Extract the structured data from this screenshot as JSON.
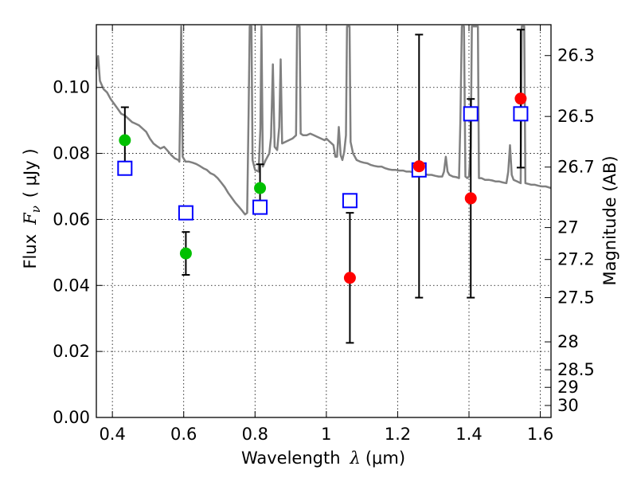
{
  "chart_data": {
    "type": "scatter",
    "xlabel_text": "Wavelength",
    "xlabel_symbol": "λ",
    "xlabel_unit": "(μm)",
    "ylabel_text": "Flux",
    "ylabel_symbol": "F",
    "ylabel_sub": "ν",
    "ylabel_unit": "( μJy )",
    "y2label": "Magnitude (AB)",
    "xlim": [
      0.355,
      1.63
    ],
    "ylim": [
      0.0,
      0.119
    ],
    "grid": true,
    "x_ticks": [
      0.4,
      0.6,
      0.8,
      1.0,
      1.2,
      1.4,
      1.6
    ],
    "x_tick_labels": [
      "0.4",
      "0.6",
      "0.8",
      "1",
      "1.2",
      "1.4",
      "1.6"
    ],
    "y_ticks": [
      0.0,
      0.02,
      0.04,
      0.06,
      0.08,
      0.1
    ],
    "y_tick_labels": [
      "0.00",
      "0.02",
      "0.04",
      "0.06",
      "0.08",
      "0.10"
    ],
    "y2_ticks": [
      26.3,
      26.5,
      26.7,
      27,
      27.2,
      27.5,
      28,
      28.5,
      29,
      30
    ],
    "y2_tick_labels": [
      "26.3",
      "26.5",
      "26.7",
      "27",
      "27.2",
      "27.5",
      "28",
      "28.5",
      "29",
      "30"
    ],
    "colors": {
      "detection": "#00c000",
      "upper": "#ff0000",
      "model": "#0000ff",
      "spectrum": "#808080",
      "errorbar": "#000000"
    },
    "observed": [
      {
        "x": 0.435,
        "y": 0.084,
        "yerr_low": 0.0745,
        "yerr_high": 0.094,
        "marker": "green"
      },
      {
        "x": 0.606,
        "y": 0.0497,
        "yerr_low": 0.0432,
        "yerr_high": 0.0562,
        "marker": "green"
      },
      {
        "x": 0.814,
        "y": 0.0695,
        "yerr_low": 0.0624,
        "yerr_high": 0.0767,
        "marker": "green"
      },
      {
        "x": 1.066,
        "y": 0.0423,
        "yerr_low": 0.0226,
        "yerr_high": 0.062,
        "marker": "red"
      },
      {
        "x": 1.26,
        "y": 0.0761,
        "yerr_low": 0.0363,
        "yerr_high": 0.116,
        "marker": "red"
      },
      {
        "x": 1.405,
        "y": 0.0664,
        "yerr_low": 0.0363,
        "yerr_high": 0.0965,
        "marker": "red"
      },
      {
        "x": 1.545,
        "y": 0.0966,
        "yerr_low": 0.0757,
        "yerr_high": 0.1175,
        "marker": "red"
      }
    ],
    "model_points": [
      {
        "x": 0.435,
        "y": 0.0755
      },
      {
        "x": 0.606,
        "y": 0.062
      },
      {
        "x": 0.814,
        "y": 0.0637
      },
      {
        "x": 1.066,
        "y": 0.0657
      },
      {
        "x": 1.26,
        "y": 0.075
      },
      {
        "x": 1.405,
        "y": 0.092
      },
      {
        "x": 1.545,
        "y": 0.092
      }
    ],
    "spectrum": [
      [
        0.355,
        0.1055
      ],
      [
        0.36,
        0.1095
      ],
      [
        0.365,
        0.102
      ],
      [
        0.375,
        0.0995
      ],
      [
        0.385,
        0.0985
      ],
      [
        0.395,
        0.0965
      ],
      [
        0.405,
        0.095
      ],
      [
        0.415,
        0.0935
      ],
      [
        0.425,
        0.092
      ],
      [
        0.435,
        0.0915
      ],
      [
        0.445,
        0.0905
      ],
      [
        0.455,
        0.0895
      ],
      [
        0.465,
        0.089
      ],
      [
        0.475,
        0.0885
      ],
      [
        0.485,
        0.0875
      ],
      [
        0.495,
        0.0865
      ],
      [
        0.505,
        0.0845
      ],
      [
        0.515,
        0.083
      ],
      [
        0.525,
        0.0822
      ],
      [
        0.535,
        0.0815
      ],
      [
        0.545,
        0.082
      ],
      [
        0.555,
        0.0808
      ],
      [
        0.565,
        0.0795
      ],
      [
        0.575,
        0.0785
      ],
      [
        0.585,
        0.078
      ],
      [
        0.588,
        0.0775
      ],
      [
        0.59,
        0.093
      ],
      [
        0.593,
        0.1185
      ],
      [
        0.597,
        0.079
      ],
      [
        0.605,
        0.0775
      ],
      [
        0.615,
        0.0775
      ],
      [
        0.625,
        0.0772
      ],
      [
        0.635,
        0.0768
      ],
      [
        0.645,
        0.0762
      ],
      [
        0.655,
        0.0755
      ],
      [
        0.665,
        0.075
      ],
      [
        0.675,
        0.074
      ],
      [
        0.685,
        0.0735
      ],
      [
        0.695,
        0.0725
      ],
      [
        0.705,
        0.0712
      ],
      [
        0.715,
        0.0698
      ],
      [
        0.725,
        0.068
      ],
      [
        0.735,
        0.0665
      ],
      [
        0.745,
        0.065
      ],
      [
        0.755,
        0.0638
      ],
      [
        0.765,
        0.0625
      ],
      [
        0.772,
        0.0615
      ],
      [
        0.778,
        0.062
      ],
      [
        0.782,
        0.092
      ],
      [
        0.785,
        0.1185
      ],
      [
        0.79,
        0.1185
      ],
      [
        0.793,
        0.078
      ],
      [
        0.8,
        0.075
      ],
      [
        0.81,
        0.0745
      ],
      [
        0.815,
        0.0875
      ],
      [
        0.818,
        0.1185
      ],
      [
        0.822,
        0.076
      ],
      [
        0.83,
        0.078
      ],
      [
        0.84,
        0.08
      ],
      [
        0.845,
        0.085
      ],
      [
        0.85,
        0.107
      ],
      [
        0.855,
        0.082
      ],
      [
        0.862,
        0.081
      ],
      [
        0.868,
        0.088
      ],
      [
        0.872,
        0.1085
      ],
      [
        0.876,
        0.083
      ],
      [
        0.885,
        0.0835
      ],
      [
        0.895,
        0.084
      ],
      [
        0.905,
        0.0845
      ],
      [
        0.915,
        0.0855
      ],
      [
        0.918,
        0.1185
      ],
      [
        0.925,
        0.1185
      ],
      [
        0.928,
        0.086
      ],
      [
        0.935,
        0.0855
      ],
      [
        0.945,
        0.0855
      ],
      [
        0.955,
        0.086
      ],
      [
        0.965,
        0.0855
      ],
      [
        0.975,
        0.085
      ],
      [
        0.985,
        0.0845
      ],
      [
        0.995,
        0.084
      ],
      [
        1.0,
        0.0845
      ],
      [
        1.01,
        0.0835
      ],
      [
        1.02,
        0.0825
      ],
      [
        1.025,
        0.079
      ],
      [
        1.03,
        0.079
      ],
      [
        1.035,
        0.088
      ],
      [
        1.04,
        0.0795
      ],
      [
        1.045,
        0.078
      ],
      [
        1.05,
        0.0805
      ],
      [
        1.055,
        0.0855
      ],
      [
        1.058,
        0.1185
      ],
      [
        1.065,
        0.1185
      ],
      [
        1.068,
        0.0835
      ],
      [
        1.075,
        0.08
      ],
      [
        1.085,
        0.078
      ],
      [
        1.095,
        0.0775
      ],
      [
        1.105,
        0.0772
      ],
      [
        1.115,
        0.077
      ],
      [
        1.125,
        0.0765
      ],
      [
        1.135,
        0.0762
      ],
      [
        1.145,
        0.076
      ],
      [
        1.155,
        0.076
      ],
      [
        1.165,
        0.0755
      ],
      [
        1.175,
        0.0752
      ],
      [
        1.185,
        0.075
      ],
      [
        1.195,
        0.075
      ],
      [
        1.205,
        0.0748
      ],
      [
        1.215,
        0.0748
      ],
      [
        1.225,
        0.0745
      ],
      [
        1.235,
        0.0745
      ],
      [
        1.245,
        0.0742
      ],
      [
        1.255,
        0.074
      ],
      [
        1.265,
        0.074
      ],
      [
        1.275,
        0.0738
      ],
      [
        1.285,
        0.0735
      ],
      [
        1.295,
        0.0735
      ],
      [
        1.305,
        0.0732
      ],
      [
        1.315,
        0.073
      ],
      [
        1.325,
        0.073
      ],
      [
        1.33,
        0.0745
      ],
      [
        1.335,
        0.079
      ],
      [
        1.34,
        0.0745
      ],
      [
        1.345,
        0.0735
      ],
      [
        1.355,
        0.073
      ],
      [
        1.365,
        0.0728
      ],
      [
        1.372,
        0.0725
      ],
      [
        1.376,
        0.09
      ],
      [
        1.38,
        0.1185
      ],
      [
        1.386,
        0.1185
      ],
      [
        1.39,
        0.073
      ],
      [
        1.395,
        0.0725
      ],
      [
        1.4,
        0.073
      ],
      [
        1.405,
        0.082
      ],
      [
        1.408,
        0.1185
      ],
      [
        1.425,
        0.1185
      ],
      [
        1.428,
        0.0725
      ],
      [
        1.435,
        0.0725
      ],
      [
        1.445,
        0.072
      ],
      [
        1.455,
        0.072
      ],
      [
        1.465,
        0.0718
      ],
      [
        1.475,
        0.0715
      ],
      [
        1.485,
        0.0715
      ],
      [
        1.495,
        0.0712
      ],
      [
        1.505,
        0.071
      ],
      [
        1.51,
        0.0745
      ],
      [
        1.515,
        0.0825
      ],
      [
        1.52,
        0.0735
      ],
      [
        1.525,
        0.072
      ],
      [
        1.535,
        0.0715
      ],
      [
        1.545,
        0.071
      ],
      [
        1.548,
        0.1185
      ],
      [
        1.555,
        0.1185
      ],
      [
        1.558,
        0.071
      ],
      [
        1.565,
        0.0708
      ],
      [
        1.575,
        0.0705
      ],
      [
        1.585,
        0.0705
      ],
      [
        1.595,
        0.0702
      ],
      [
        1.605,
        0.07
      ],
      [
        1.615,
        0.07
      ],
      [
        1.63,
        0.0695
      ]
    ]
  }
}
